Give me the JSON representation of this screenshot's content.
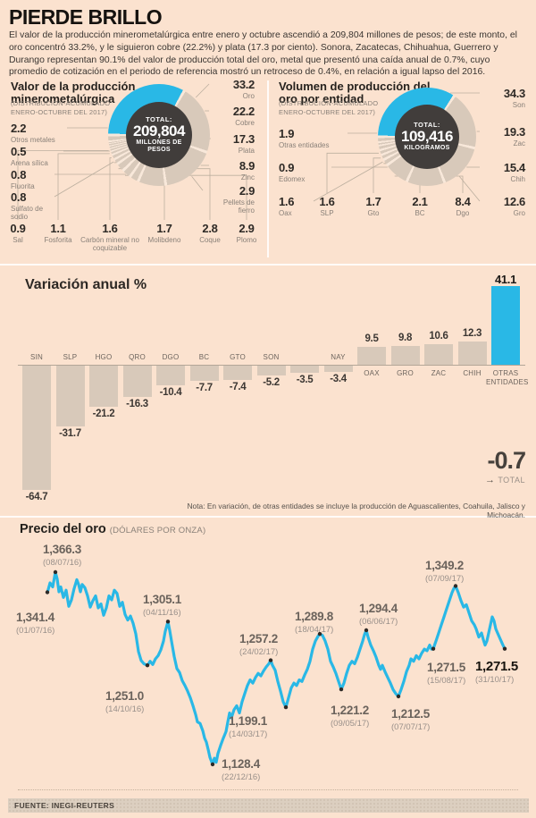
{
  "header": {
    "title": "PIERDE BRILLO",
    "intro": "El valor de la producción minerometalúrgica entre enero y octubre ascendió a 209,804 millones de pesos; de este monto, el oro concentró 33.2%, y le siguieron cobre (22.2%) y plata (17.3 por ciento). Sonora, Zacatecas, Chihuahua, Guerrero y Durango representan 90.1% del valor de producción total del oro, metal que presentó una caída anual de 0.7%, cuyo promedio de cotización en el periodo de referencia mostró un retroceso de 0.4%, en relación a igual lapso del 2016."
  },
  "chart_data": [
    {
      "type": "pie",
      "title": "Valor de la producción minerometalúrgica",
      "subtitle": "(DISTRIBUCIÓN-ACUMULADO ENERO-OCTUBRE DEL 2017)",
      "total": {
        "label": "TOTAL:",
        "value": "209,804",
        "unit": "MILLONES DE PESOS"
      },
      "units": "%",
      "slices": [
        {
          "label": "Oro",
          "value": 33.2
        },
        {
          "label": "Cobre",
          "value": 22.2
        },
        {
          "label": "Plata",
          "value": 17.3
        },
        {
          "label": "Zinc",
          "value": 8.9
        },
        {
          "label": "Pellets de fierro",
          "value": 2.9
        },
        {
          "label": "Plomo",
          "value": 2.9
        },
        {
          "label": "Coque",
          "value": 2.8
        },
        {
          "label": "Molibdeno",
          "value": 1.7
        },
        {
          "label": "Carbón mineral no coquizable",
          "value": 1.6
        },
        {
          "label": "Fosforita",
          "value": 1.1
        },
        {
          "label": "Sal",
          "value": 0.9
        },
        {
          "label": "Sulfato de sodio",
          "value": 0.8
        },
        {
          "label": "Fluorita",
          "value": 0.8
        },
        {
          "label": "Arena sílica",
          "value": 0.5
        },
        {
          "label": "Otros metales",
          "value": 2.2
        }
      ]
    },
    {
      "type": "pie",
      "title": "Volumen de producción del oro por entidad",
      "subtitle": "(DISTRIBUCIÓN-ACUMULADO ENERO-OCTUBRE DEL 2017)",
      "total": {
        "label": "TOTAL:",
        "value": "109,416",
        "unit": "KILOGRAMOS"
      },
      "units": "%",
      "slices": [
        {
          "label": "Son",
          "value": 34.3
        },
        {
          "label": "Zac",
          "value": 19.3
        },
        {
          "label": "Chih",
          "value": 15.4
        },
        {
          "label": "Gro",
          "value": 12.6
        },
        {
          "label": "Dgo",
          "value": 8.4
        },
        {
          "label": "BC",
          "value": 2.1
        },
        {
          "label": "Gto",
          "value": 1.7
        },
        {
          "label": "SLP",
          "value": 1.6
        },
        {
          "label": "Oax",
          "value": 1.6
        },
        {
          "label": "Edomex",
          "value": 0.9
        },
        {
          "label": "Otras entidades",
          "value": 1.9
        }
      ]
    },
    {
      "type": "bar",
      "title": "Variación anual %",
      "categories": [
        "SIN",
        "SLP",
        "HGO",
        "QRO",
        "DGO",
        "BC",
        "GTO",
        "SON",
        "",
        "NAY",
        "OAX",
        "GRO",
        "ZAC",
        "CHIH",
        "OTRAS ENTIDADES"
      ],
      "values": [
        -64.7,
        -31.7,
        -21.2,
        -16.3,
        -10.4,
        -7.7,
        -7.4,
        -5.2,
        -3.5,
        -3.4,
        9.5,
        9.8,
        10.6,
        12.3,
        41.1
      ],
      "highlight_category": "OTRAS ENTIDADES",
      "total": {
        "value": "-0.7",
        "arrow": "→",
        "label": "TOTAL"
      },
      "note": "Nota: En variación, de otras entidades se incluye la producción de Aguascalientes, Coahuila, Jalisco y Michoacán.",
      "ylim": [
        -70,
        45
      ]
    },
    {
      "type": "line",
      "title": "Precio del oro",
      "unit_label": "(DÓLARES POR ONZA)",
      "annotations": [
        {
          "value": "1,341.4",
          "date": "(01/07/16)"
        },
        {
          "value": "1,366.3",
          "date": "(08/07/16)"
        },
        {
          "value": "1,251.0",
          "date": "(14/10/16)"
        },
        {
          "value": "1,305.1",
          "date": "(04/11/16)"
        },
        {
          "value": "1,128.4",
          "date": "(22/12/16)"
        },
        {
          "value": "1,257.2",
          "date": "(24/02/17)"
        },
        {
          "value": "1,199.1",
          "date": "(14/03/17)"
        },
        {
          "value": "1,289.8",
          "date": "(18/04/17)"
        },
        {
          "value": "1,221.2",
          "date": "(09/05/17)"
        },
        {
          "value": "1,294.4",
          "date": "(06/06/17)"
        },
        {
          "value": "1,212.5",
          "date": "(07/07/17)"
        },
        {
          "value": "1,271.5",
          "date": "(15/08/17)"
        },
        {
          "value": "1,349.2",
          "date": "(07/09/17)"
        },
        {
          "value": "1,271.5",
          "date": "(31/10/17)"
        }
      ],
      "dots": [
        [
          53,
          1341.4
        ],
        [
          62,
          1366.3
        ],
        [
          165,
          1251.0
        ],
        [
          188,
          1305.1
        ],
        [
          238,
          1128.4
        ],
        [
          303,
          1257.2
        ],
        [
          320,
          1199.1
        ],
        [
          358,
          1289.8
        ],
        [
          382,
          1221.2
        ],
        [
          410,
          1294.4
        ],
        [
          446,
          1212.5
        ],
        [
          485,
          1271.5
        ],
        [
          510,
          1349.2
        ],
        [
          565,
          1271.5
        ]
      ],
      "series": [
        [
          53,
          1341
        ],
        [
          56,
          1353
        ],
        [
          59,
          1348
        ],
        [
          62,
          1366.3
        ],
        [
          64,
          1358
        ],
        [
          66,
          1342
        ],
        [
          68,
          1348
        ],
        [
          71,
          1335
        ],
        [
          74,
          1344
        ],
        [
          77,
          1324
        ],
        [
          80,
          1332
        ],
        [
          83,
          1346
        ],
        [
          86,
          1357
        ],
        [
          88,
          1351
        ],
        [
          90,
          1342
        ],
        [
          92,
          1351
        ],
        [
          95,
          1347
        ],
        [
          98,
          1337
        ],
        [
          101,
          1323
        ],
        [
          104,
          1331
        ],
        [
          107,
          1337
        ],
        [
          110,
          1322
        ],
        [
          113,
          1327
        ],
        [
          116,
          1313
        ],
        [
          119,
          1322
        ],
        [
          122,
          1337
        ],
        [
          125,
          1332
        ],
        [
          128,
          1344
        ],
        [
          131,
          1340
        ],
        [
          134,
          1324
        ],
        [
          137,
          1329
        ],
        [
          140,
          1314
        ],
        [
          143,
          1307
        ],
        [
          146,
          1312
        ],
        [
          149,
          1303
        ],
        [
          152,
          1290
        ],
        [
          155,
          1268
        ],
        [
          158,
          1257
        ],
        [
          161,
          1253
        ],
        [
          165,
          1251
        ],
        [
          168,
          1256
        ],
        [
          171,
          1252
        ],
        [
          174,
          1259
        ],
        [
          177,
          1263
        ],
        [
          180,
          1270
        ],
        [
          183,
          1281
        ],
        [
          185,
          1293
        ],
        [
          188,
          1305.1
        ],
        [
          190,
          1294
        ],
        [
          192,
          1281
        ],
        [
          195,
          1262
        ],
        [
          198,
          1247
        ],
        [
          201,
          1242
        ],
        [
          204,
          1232
        ],
        [
          207,
          1226
        ],
        [
          210,
          1219
        ],
        [
          213,
          1211
        ],
        [
          216,
          1201
        ],
        [
          219,
          1190
        ],
        [
          221,
          1181
        ],
        [
          224,
          1179
        ],
        [
          227,
          1170
        ],
        [
          229,
          1161
        ],
        [
          231,
          1156
        ],
        [
          233,
          1147
        ],
        [
          235,
          1137
        ],
        [
          238,
          1128.4
        ],
        [
          240,
          1136
        ],
        [
          242,
          1131
        ],
        [
          244,
          1142
        ],
        [
          247,
          1152
        ],
        [
          250,
          1161
        ],
        [
          253,
          1169
        ],
        [
          255,
          1181
        ],
        [
          257,
          1192
        ],
        [
          259,
          1186
        ],
        [
          262,
          1196
        ],
        [
          265,
          1201
        ],
        [
          268,
          1192
        ],
        [
          271,
          1206
        ],
        [
          274,
          1216
        ],
        [
          277,
          1226
        ],
        [
          280,
          1233
        ],
        [
          283,
          1229
        ],
        [
          286,
          1236
        ],
        [
          289,
          1241
        ],
        [
          292,
          1238
        ],
        [
          295,
          1244
        ],
        [
          298,
          1249
        ],
        [
          301,
          1253
        ],
        [
          303,
          1257.2
        ],
        [
          305,
          1251
        ],
        [
          308,
          1245
        ],
        [
          311,
          1231
        ],
        [
          314,
          1219
        ],
        [
          317,
          1206
        ],
        [
          320,
          1199.1
        ],
        [
          323,
          1211
        ],
        [
          326,
          1223
        ],
        [
          329,
          1229
        ],
        [
          332,
          1226
        ],
        [
          335,
          1233
        ],
        [
          338,
          1231
        ],
        [
          341,
          1239
        ],
        [
          344,
          1246
        ],
        [
          347,
          1256
        ],
        [
          350,
          1271
        ],
        [
          353,
          1281
        ],
        [
          356,
          1287
        ],
        [
          358,
          1289.8
        ],
        [
          361,
          1288
        ],
        [
          364,
          1281
        ],
        [
          367,
          1271
        ],
        [
          370,
          1256
        ],
        [
          373,
          1249
        ],
        [
          376,
          1241
        ],
        [
          379,
          1231
        ],
        [
          382,
          1221.2
        ],
        [
          385,
          1229
        ],
        [
          388,
          1241
        ],
        [
          391,
          1251
        ],
        [
          394,
          1256
        ],
        [
          397,
          1253
        ],
        [
          400,
          1261
        ],
        [
          403,
          1271
        ],
        [
          406,
          1281
        ],
        [
          408,
          1289
        ],
        [
          410,
          1294.4
        ],
        [
          412,
          1286
        ],
        [
          415,
          1276
        ],
        [
          418,
          1269
        ],
        [
          421,
          1261
        ],
        [
          424,
          1251
        ],
        [
          426,
          1246
        ],
        [
          428,
          1251
        ],
        [
          431,
          1243
        ],
        [
          434,
          1236
        ],
        [
          437,
          1229
        ],
        [
          440,
          1221
        ],
        [
          443,
          1216
        ],
        [
          446,
          1212.5
        ],
        [
          449,
          1221
        ],
        [
          452,
          1231
        ],
        [
          455,
          1243
        ],
        [
          458,
          1251
        ],
        [
          460,
          1259
        ],
        [
          463,
          1256
        ],
        [
          466,
          1263
        ],
        [
          469,
          1259
        ],
        [
          472,
          1266
        ],
        [
          475,
          1271
        ],
        [
          478,
          1269
        ],
        [
          481,
          1276
        ],
        [
          483,
          1271
        ],
        [
          485,
          1271.5
        ],
        [
          488,
          1281
        ],
        [
          491,
          1291
        ],
        [
          494,
          1301
        ],
        [
          497,
          1311
        ],
        [
          500,
          1321
        ],
        [
          503,
          1331
        ],
        [
          506,
          1341
        ],
        [
          508,
          1346
        ],
        [
          510,
          1349.2
        ],
        [
          513,
          1341
        ],
        [
          516,
          1331
        ],
        [
          519,
          1323
        ],
        [
          522,
          1326
        ],
        [
          525,
          1316
        ],
        [
          528,
          1306
        ],
        [
          531,
          1301
        ],
        [
          533,
          1296
        ],
        [
          536,
          1286
        ],
        [
          539,
          1291
        ],
        [
          541,
          1283
        ],
        [
          543,
          1276
        ],
        [
          545,
          1281
        ],
        [
          547,
          1291
        ],
        [
          549,
          1301
        ],
        [
          551,
          1311
        ],
        [
          553,
          1306
        ],
        [
          555,
          1296
        ],
        [
          557,
          1291
        ],
        [
          559,
          1286
        ],
        [
          561,
          1281
        ],
        [
          563,
          1276
        ],
        [
          565,
          1271.5
        ]
      ]
    }
  ],
  "footer": {
    "source": "FUENTE: INEGI-REUTERS"
  },
  "colors": {
    "accent": "#29b8e6",
    "beige": "#d8c9ba",
    "dark_circle": "#413d3b",
    "background": "#fbe2cf"
  }
}
